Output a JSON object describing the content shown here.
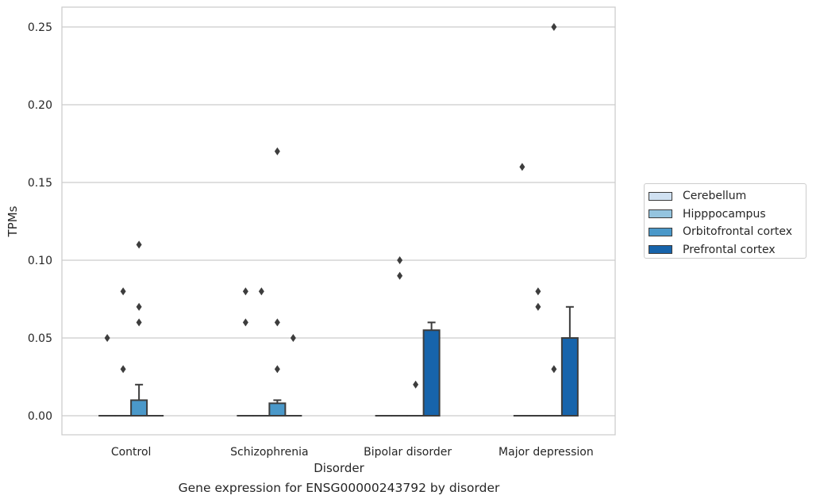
{
  "caption": "Gene expression for ENSG00000243792 by disorder",
  "chart_data": {
    "type": "box",
    "title": "",
    "xlabel": "Disorder",
    "ylabel": "TPMs",
    "ylim": [
      -0.012,
      0.263
    ],
    "yticks": [
      0.0,
      0.05,
      0.1,
      0.15,
      0.2,
      0.25
    ],
    "ytick_labels": [
      "0.00",
      "0.05",
      "0.10",
      "0.15",
      "0.20",
      "0.25"
    ],
    "categories": [
      "Control",
      "Schizophrenia",
      "Bipolar disorder",
      "Major depression"
    ],
    "grid": "horizontal",
    "legend_position": "right",
    "series": [
      {
        "name": "Cerebellum",
        "color": "#d0e1f2",
        "boxes": [
          {
            "q1": 0,
            "median": 0,
            "q3": 0,
            "whisker_low": 0,
            "whisker_high": 0,
            "outliers": [
              0.05
            ]
          },
          {
            "q1": 0,
            "median": 0,
            "q3": 0,
            "whisker_low": 0,
            "whisker_high": 0,
            "outliers": [
              0.08,
              0.06
            ]
          },
          {
            "q1": 0,
            "median": 0,
            "q3": 0,
            "whisker_low": 0,
            "whisker_high": 0,
            "outliers": []
          },
          {
            "q1": 0,
            "median": 0,
            "q3": 0,
            "whisker_low": 0,
            "whisker_high": 0,
            "outliers": [
              0.16
            ]
          }
        ]
      },
      {
        "name": "Hipppocampus",
        "color": "#94c4df",
        "boxes": [
          {
            "q1": 0,
            "median": 0,
            "q3": 0,
            "whisker_low": 0,
            "whisker_high": 0,
            "outliers": [
              0.08,
              0.03
            ]
          },
          {
            "q1": 0,
            "median": 0,
            "q3": 0,
            "whisker_low": 0,
            "whisker_high": 0,
            "outliers": [
              0.08
            ]
          },
          {
            "q1": 0,
            "median": 0,
            "q3": 0,
            "whisker_low": 0,
            "whisker_high": 0,
            "outliers": [
              0.1,
              0.09
            ]
          },
          {
            "q1": 0,
            "median": 0,
            "q3": 0,
            "whisker_low": 0,
            "whisker_high": 0,
            "outliers": [
              0.08,
              0.07
            ]
          }
        ]
      },
      {
        "name": "Orbitofrontal cortex",
        "color": "#4a98c9",
        "boxes": [
          {
            "q1": 0,
            "median": 0,
            "q3": 0.01,
            "whisker_low": 0,
            "whisker_high": 0.02,
            "outliers": [
              0.11,
              0.07,
              0.06
            ]
          },
          {
            "q1": 0,
            "median": 0,
            "q3": 0.008,
            "whisker_low": 0,
            "whisker_high": 0.01,
            "outliers": [
              0.17,
              0.06,
              0.03
            ]
          },
          {
            "q1": 0,
            "median": 0,
            "q3": 0,
            "whisker_low": 0,
            "whisker_high": 0,
            "outliers": [
              0.02
            ]
          },
          {
            "q1": 0,
            "median": 0,
            "q3": 0,
            "whisker_low": 0,
            "whisker_high": 0,
            "outliers": [
              0.25,
              0.03
            ]
          }
        ]
      },
      {
        "name": "Prefrontal cortex",
        "color": "#1764ab",
        "boxes": [
          {
            "q1": 0,
            "median": 0,
            "q3": 0,
            "whisker_low": 0,
            "whisker_high": 0,
            "outliers": []
          },
          {
            "q1": 0,
            "median": 0,
            "q3": 0,
            "whisker_low": 0,
            "whisker_high": 0,
            "outliers": [
              0.05
            ]
          },
          {
            "q1": 0,
            "median": 0,
            "q3": 0.055,
            "whisker_low": 0,
            "whisker_high": 0.06,
            "outliers": []
          },
          {
            "q1": 0,
            "median": 0,
            "q3": 0.05,
            "whisker_low": 0,
            "whisker_high": 0.07,
            "outliers": []
          }
        ]
      }
    ]
  }
}
